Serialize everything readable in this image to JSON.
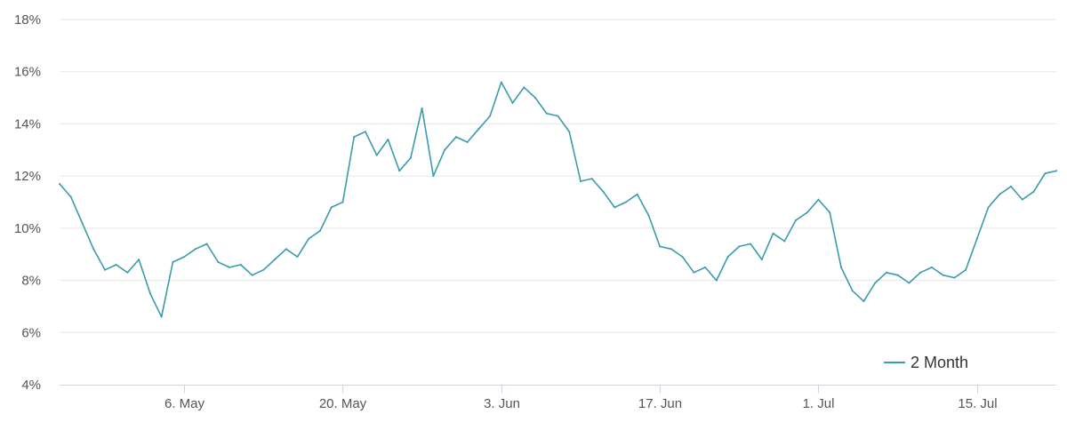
{
  "chart_data": {
    "type": "line",
    "title": "",
    "xlabel": "",
    "ylabel": "",
    "ylim": [
      4,
      18
    ],
    "y_ticks": [
      4,
      6,
      8,
      10,
      12,
      14,
      16,
      18
    ],
    "y_tick_labels": [
      "4%",
      "6%",
      "8%",
      "10%",
      "12%",
      "14%",
      "16%",
      "18%"
    ],
    "xlim": [
      "2024-04-25",
      "2024-07-22"
    ],
    "x_ticks": [
      "2024-05-06",
      "2024-05-20",
      "2024-06-03",
      "2024-06-17",
      "2024-07-01",
      "2024-07-15"
    ],
    "x_tick_labels": [
      "6. May",
      "20. May",
      "3. Jun",
      "17. Jun",
      "1. Jul",
      "15. Jul"
    ],
    "grid": true,
    "legend_position": "bottom-right",
    "series": [
      {
        "name": "2 Month",
        "color": "#3a9bac",
        "x": [
          "2024-04-25",
          "2024-04-26",
          "2024-04-27",
          "2024-04-28",
          "2024-04-29",
          "2024-04-30",
          "2024-05-01",
          "2024-05-02",
          "2024-05-03",
          "2024-05-04",
          "2024-05-05",
          "2024-05-06",
          "2024-05-07",
          "2024-05-08",
          "2024-05-09",
          "2024-05-10",
          "2024-05-11",
          "2024-05-12",
          "2024-05-13",
          "2024-05-14",
          "2024-05-15",
          "2024-05-16",
          "2024-05-17",
          "2024-05-18",
          "2024-05-19",
          "2024-05-20",
          "2024-05-21",
          "2024-05-22",
          "2024-05-23",
          "2024-05-24",
          "2024-05-25",
          "2024-05-26",
          "2024-05-27",
          "2024-05-28",
          "2024-05-29",
          "2024-05-30",
          "2024-05-31",
          "2024-06-01",
          "2024-06-02",
          "2024-06-03",
          "2024-06-04",
          "2024-06-05",
          "2024-06-06",
          "2024-06-07",
          "2024-06-08",
          "2024-06-09",
          "2024-06-10",
          "2024-06-11",
          "2024-06-12",
          "2024-06-13",
          "2024-06-14",
          "2024-06-15",
          "2024-06-16",
          "2024-06-17",
          "2024-06-18",
          "2024-06-19",
          "2024-06-20",
          "2024-06-21",
          "2024-06-22",
          "2024-06-23",
          "2024-06-24",
          "2024-06-25",
          "2024-06-26",
          "2024-06-27",
          "2024-06-28",
          "2024-06-29",
          "2024-06-30",
          "2024-07-01",
          "2024-07-02",
          "2024-07-03",
          "2024-07-04",
          "2024-07-05",
          "2024-07-06",
          "2024-07-07",
          "2024-07-08",
          "2024-07-09",
          "2024-07-10",
          "2024-07-11",
          "2024-07-12",
          "2024-07-13",
          "2024-07-14",
          "2024-07-15",
          "2024-07-16",
          "2024-07-17",
          "2024-07-18",
          "2024-07-19",
          "2024-07-20",
          "2024-07-21",
          "2024-07-22"
        ],
        "values": [
          11.7,
          11.2,
          10.2,
          9.2,
          8.4,
          8.6,
          8.3,
          8.8,
          7.5,
          6.6,
          8.7,
          8.9,
          9.2,
          9.4,
          8.7,
          8.5,
          8.6,
          8.2,
          8.4,
          8.8,
          9.2,
          8.9,
          9.6,
          9.9,
          10.8,
          11.0,
          13.5,
          13.7,
          12.8,
          13.4,
          12.2,
          12.7,
          14.6,
          12.0,
          13.0,
          13.5,
          13.3,
          13.8,
          14.3,
          15.6,
          14.8,
          15.4,
          15.0,
          14.4,
          14.3,
          13.7,
          11.8,
          11.9,
          11.4,
          10.8,
          11.0,
          11.3,
          10.5,
          9.3,
          9.2,
          8.9,
          8.3,
          8.5,
          8.0,
          8.9,
          9.3,
          9.4,
          8.8,
          9.8,
          9.5,
          10.3,
          10.6,
          11.1,
          10.6,
          8.5,
          7.6,
          7.2,
          7.9,
          8.3,
          8.2,
          7.9,
          8.3,
          8.5,
          8.2,
          8.1,
          8.4,
          9.6,
          10.8,
          11.3,
          11.6,
          11.1,
          11.4,
          12.1,
          12.2
        ]
      }
    ]
  }
}
